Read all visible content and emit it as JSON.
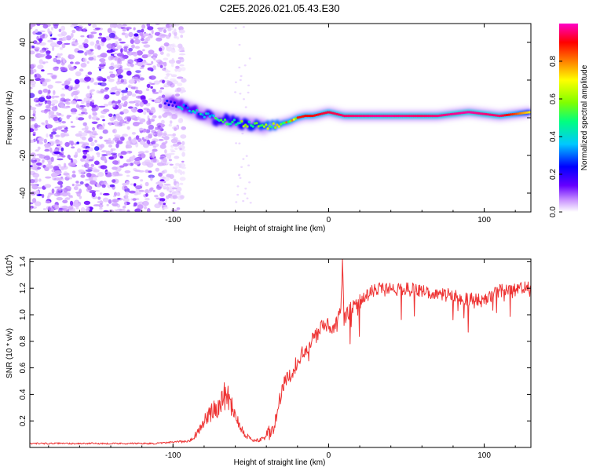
{
  "title": "C2E5.2026.021.05.43.E30",
  "chart_data": [
    {
      "type": "heatmap",
      "name": "spectrogram",
      "xlabel": "Height of straight line (km)",
      "ylabel": "Frequency (Hz)",
      "xlim": [
        -192,
        130
      ],
      "ylim": [
        -50,
        50
      ],
      "xticks": [
        -100,
        0,
        100
      ],
      "yticks": [
        -40,
        -20,
        0,
        20,
        40
      ],
      "colorbar": {
        "label": "Normalized spectral amplitude",
        "range": [
          0,
          1
        ],
        "ticks": [
          "0.0",
          "0.2",
          "0.4",
          "0.6",
          "0.8"
        ],
        "tick_values": [
          0.0,
          0.2,
          0.4,
          0.6,
          0.8
        ],
        "colors": [
          "#ffffff",
          "#cc99ff",
          "#6600ff",
          "#0000ff",
          "#00c8ff",
          "#00ff80",
          "#80ff00",
          "#ffff00",
          "#ff8000",
          "#ff0000",
          "#ff00c8"
        ]
      },
      "noise_region": {
        "x_range": [
          -192,
          -93
        ],
        "y_range": [
          -50,
          50
        ]
      },
      "signal_track": {
        "x": [
          -105,
          -95,
          -85,
          -75,
          -65,
          -55,
          -45,
          -40,
          -35,
          -30,
          -25,
          -20,
          -15,
          -10,
          -5,
          0,
          5,
          10,
          20,
          30,
          40,
          50,
          60,
          70,
          80,
          90,
          100,
          110,
          120,
          130
        ],
        "freq": [
          8,
          6,
          3,
          0,
          -2,
          -3,
          -4,
          -5,
          -4,
          -3,
          -2,
          0,
          1,
          1,
          2,
          3,
          2,
          1,
          1,
          1,
          1,
          1,
          1,
          1,
          2,
          3,
          2,
          1,
          2,
          3
        ],
        "amplitude": [
          0.3,
          0.45,
          0.5,
          0.55,
          0.6,
          0.65,
          0.72,
          0.78,
          0.8,
          0.82,
          0.85,
          0.88,
          0.9,
          0.9,
          0.92,
          0.93,
          0.94,
          0.95,
          0.96,
          0.97,
          0.97,
          0.96,
          0.95,
          0.96,
          0.97,
          0.98,
          0.96,
          0.95,
          0.85,
          0.7
        ]
      }
    },
    {
      "type": "line",
      "name": "snr",
      "xlabel": "Height of straight line (km)",
      "ylabel": "SNR (10 * v/v)",
      "y_multiplier": "(x10",
      "y_multiplier_exp": "4",
      "y_multiplier_close": ")",
      "xlim": [
        -192,
        130
      ],
      "ylim": [
        0,
        1.42
      ],
      "xticks": [
        -100,
        0,
        100
      ],
      "yticks": [
        0.2,
        0.4,
        0.6,
        0.8,
        1.0,
        1.2,
        1.4
      ],
      "ytick_labels": [
        "0.2",
        "0.4",
        "0.6",
        "0.8",
        "1.0",
        "1.2",
        "1.4"
      ],
      "color": "#ee3333",
      "series": [
        {
          "name": "SNR",
          "x": [
            -192,
            -170,
            -150,
            -130,
            -110,
            -100,
            -90,
            -85,
            -80,
            -76,
            -72,
            -68,
            -65,
            -60,
            -55,
            -50,
            -45,
            -40,
            -35,
            -32,
            -30,
            -27,
            -25,
            -22,
            -20,
            -18,
            -15,
            -12,
            -10,
            -7,
            -5,
            -2,
            0,
            3,
            6,
            8,
            9,
            10,
            12,
            15,
            20,
            25,
            30,
            35,
            40,
            45,
            50,
            55,
            60,
            65,
            70,
            75,
            80,
            85,
            90,
            95,
            100,
            105,
            110,
            115,
            120,
            125,
            130
          ],
          "y": [
            0.03,
            0.03,
            0.03,
            0.03,
            0.03,
            0.04,
            0.05,
            0.1,
            0.2,
            0.25,
            0.3,
            0.38,
            0.4,
            0.25,
            0.12,
            0.06,
            0.05,
            0.08,
            0.15,
            0.3,
            0.45,
            0.5,
            0.55,
            0.6,
            0.65,
            0.7,
            0.75,
            0.78,
            0.82,
            0.85,
            0.9,
            0.95,
            0.9,
            0.92,
            0.95,
            1.05,
            1.42,
            0.95,
            1.0,
            1.05,
            1.1,
            1.15,
            1.18,
            1.2,
            1.2,
            1.19,
            1.2,
            1.19,
            1.18,
            1.17,
            1.16,
            1.15,
            1.15,
            1.12,
            1.12,
            1.12,
            1.1,
            1.15,
            1.18,
            1.2,
            1.19,
            1.2,
            1.2
          ]
        }
      ]
    }
  ]
}
